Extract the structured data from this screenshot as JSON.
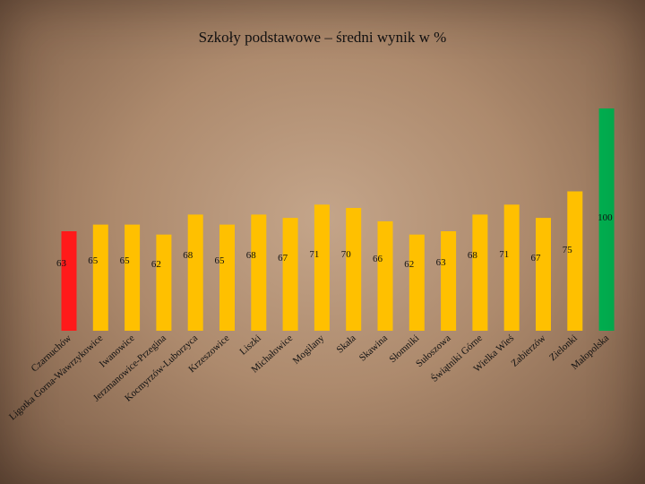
{
  "chart_data": {
    "type": "bar",
    "title": "Szkoły podstawowe – średni wynik w %",
    "xlabel": "",
    "ylabel": "",
    "categories": [
      "Czarnuchów",
      "Ligotka Gorna-Wawrzykowice",
      "Iwanowice",
      "Jerzmanowice-Przegina",
      "Kocmyrzów-Luborzyca",
      "Krzeszowice",
      "Liszki",
      "Michałowice",
      "Mogilany",
      "Skała",
      "Skawina",
      "Słomniki",
      "Sułoszowa",
      "Świątniki Górne",
      "Wielka Wieś",
      "Zabierzów",
      "Zielonki",
      "Małopolska"
    ],
    "values": [
      63,
      65,
      65,
      62,
      68,
      65,
      68,
      67,
      71,
      70,
      66,
      62,
      63,
      68,
      71,
      67,
      75,
      100
    ],
    "value_labels": [
      "63",
      "65",
      "65",
      "62",
      "68",
      "65",
      "68",
      "67",
      "71",
      "70",
      "66",
      "62",
      "63",
      "68",
      "71",
      "67",
      "75",
      "100"
    ],
    "bar_colors": [
      "#ff1a1a",
      "#ffc000",
      "#ffc000",
      "#ffc000",
      "#ffc000",
      "#ffc000",
      "#ffc000",
      "#ffc000",
      "#ffc000",
      "#ffc000",
      "#ffc000",
      "#ffc000",
      "#ffc000",
      "#ffc000",
      "#ffc000",
      "#ffc000",
      "#ffc000",
      "#00b050"
    ],
    "ylim": [
      0,
      100
    ],
    "grid": false,
    "legend": "none"
  }
}
